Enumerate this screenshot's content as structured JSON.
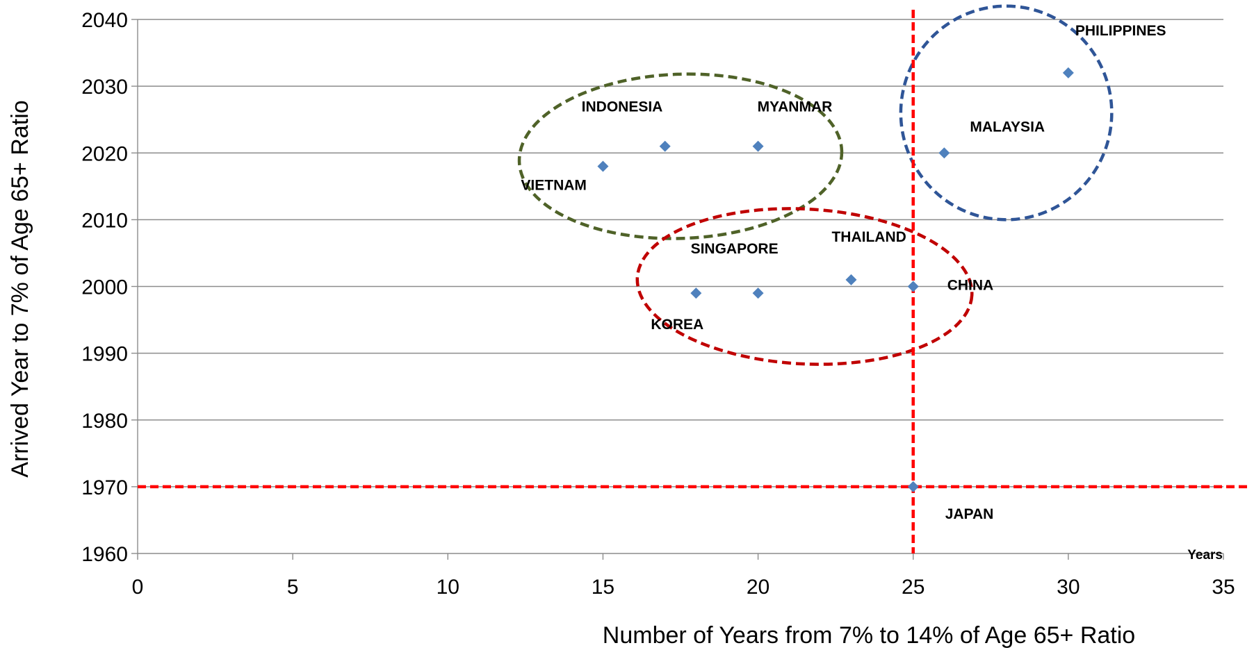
{
  "chart_data": {
    "type": "scatter",
    "xlabel": "Number of Years from 7% to 14% of Age 65+ Ratio",
    "ylabel": "Arrived Year to 7% of Age 65+ Ratio",
    "x_unit_label": "Years",
    "xlim": [
      0,
      35
    ],
    "ylim": [
      1960,
      2040
    ],
    "x_ticks": [
      "0",
      "5",
      "10",
      "15",
      "20",
      "25",
      "30",
      "35"
    ],
    "y_ticks": [
      "1960",
      "1970",
      "1980",
      "1990",
      "2000",
      "2010",
      "2020",
      "2030",
      "2040"
    ],
    "grid": "horizontal",
    "marker_color": "#4F81BD",
    "points": [
      {
        "label": "PHILIPPINES",
        "x": 30,
        "y": 2032
      },
      {
        "label": "MALAYSIA",
        "x": 26,
        "y": 2020
      },
      {
        "label": "INDONESIA",
        "x": 17,
        "y": 2021
      },
      {
        "label": "MYANMAR",
        "x": 20,
        "y": 2021
      },
      {
        "label": "VIETNAM",
        "x": 15,
        "y": 2018
      },
      {
        "label": "SINGAPORE",
        "x": 20,
        "y": 1999
      },
      {
        "label": "KOREA",
        "x": 18,
        "y": 1999
      },
      {
        "label": "THAILAND",
        "x": 23,
        "y": 2001
      },
      {
        "label": "CHINA",
        "x": 25,
        "y": 2000
      },
      {
        "label": "JAPAN",
        "x": 25,
        "y": 1970
      }
    ],
    "reference_lines": [
      {
        "orientation": "vertical",
        "value": 25,
        "color": "#FF0000"
      },
      {
        "orientation": "horizontal",
        "value": 1970,
        "color": "#FF0000"
      }
    ],
    "group_ellipses": [
      {
        "members": [
          "INDONESIA",
          "MYANMAR",
          "VIETNAM"
        ],
        "color": "#4F6228"
      },
      {
        "members": [
          "PHILIPPINES",
          "MALAYSIA"
        ],
        "color": "#2F5597"
      },
      {
        "members": [
          "SINGAPORE",
          "KOREA",
          "THAILAND",
          "CHINA"
        ],
        "color": "#C00000"
      }
    ]
  }
}
